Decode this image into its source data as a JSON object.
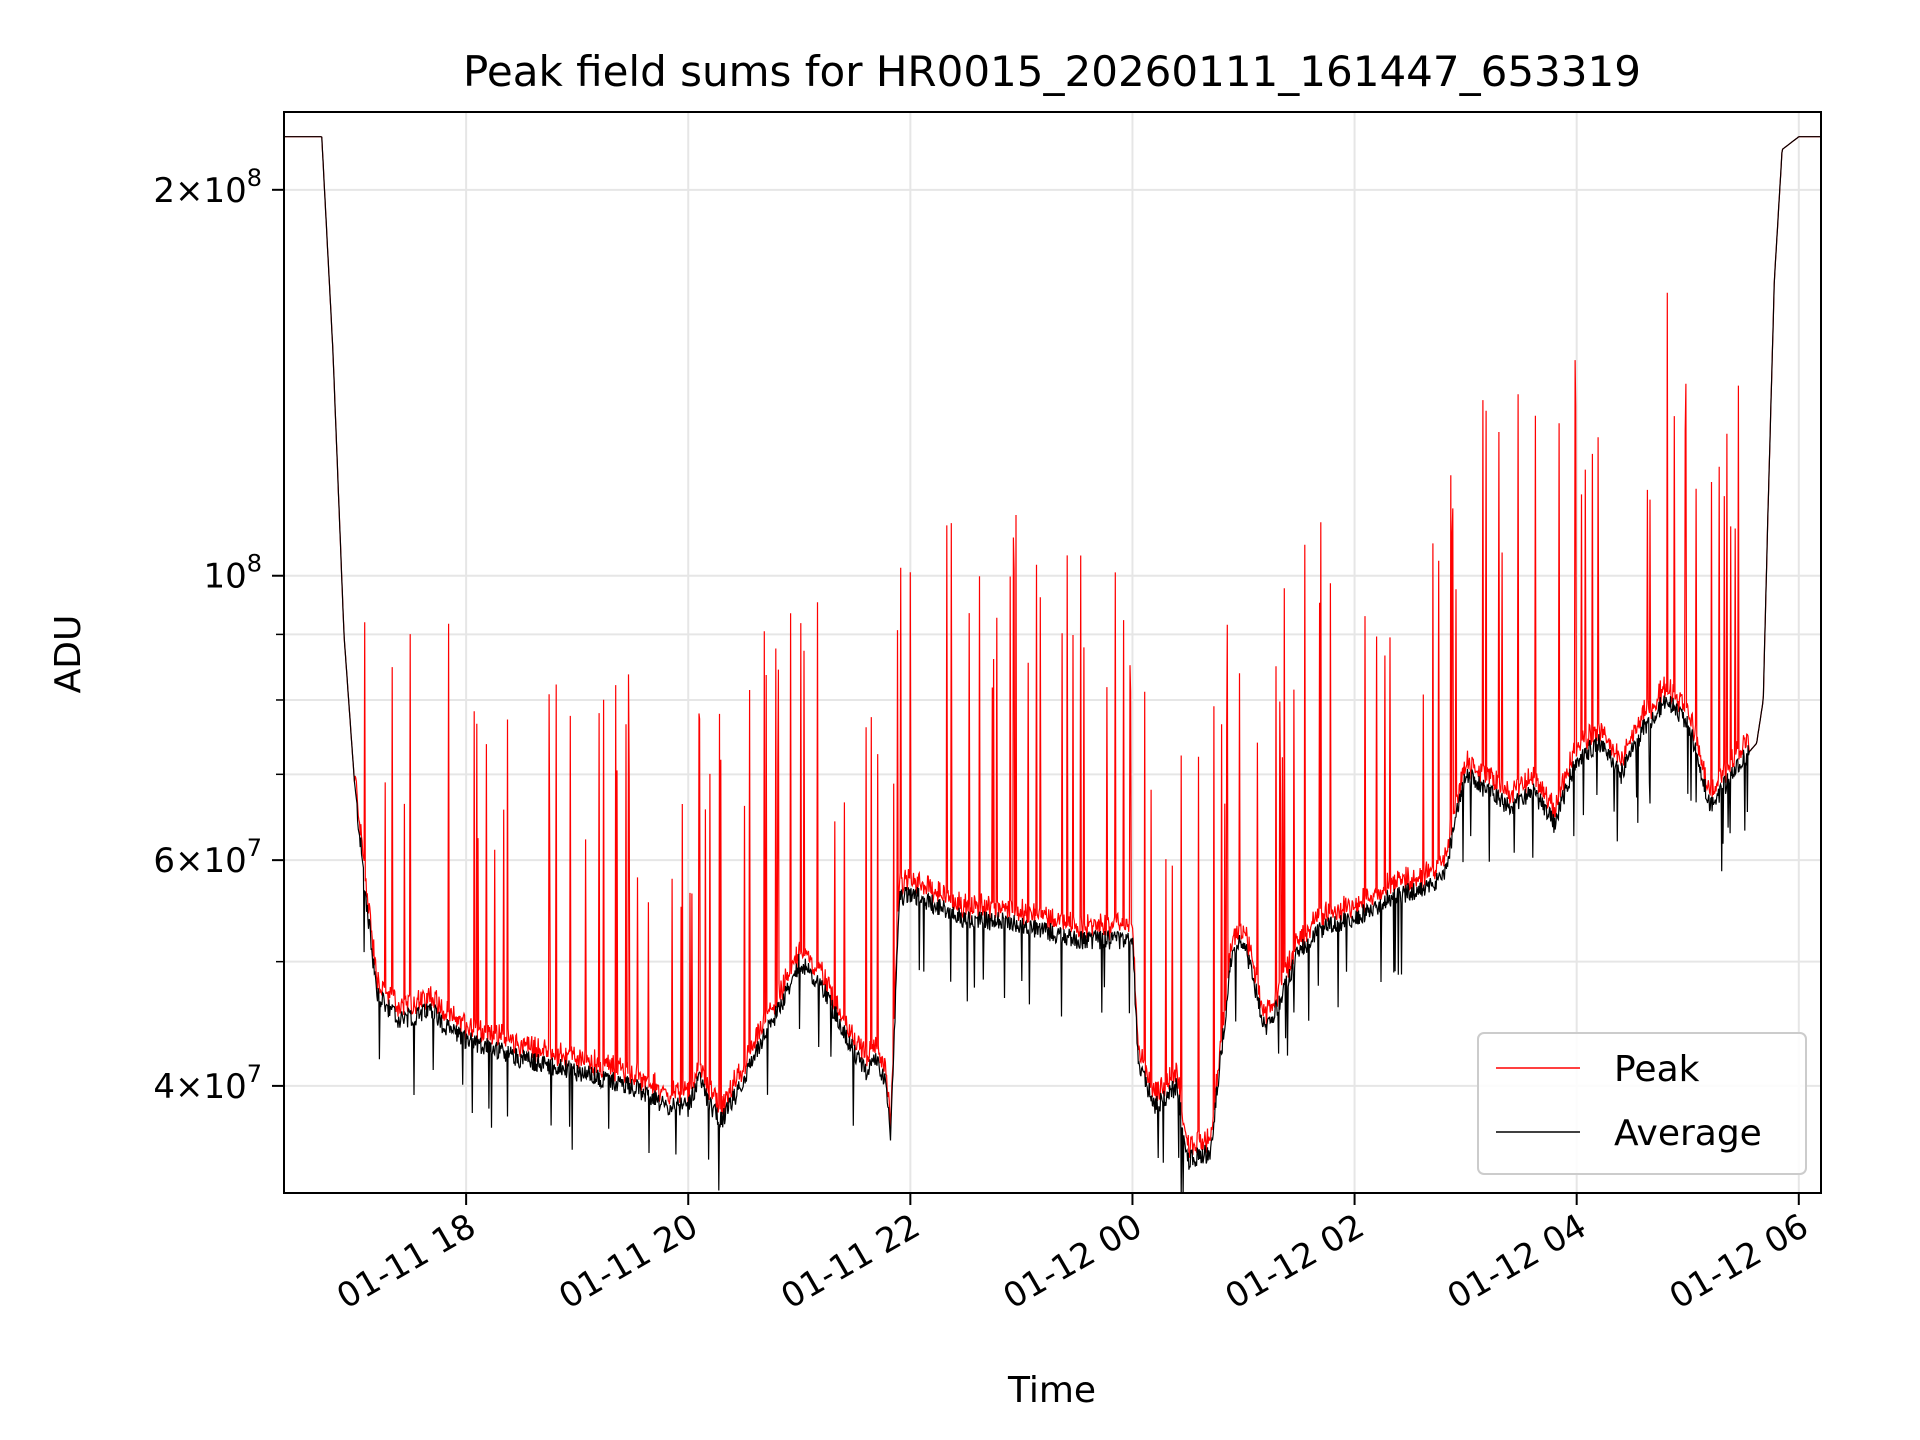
{
  "chart_data": {
    "type": "line",
    "title": "Peak field sums for HR0015_20260111_161447_653319",
    "xlabel": "Time",
    "ylabel": "ADU",
    "yscale": "log",
    "ylim": [
      33000000,
      230000000
    ],
    "xlim_hours": [
      16.36,
      30.2
    ],
    "grid": true,
    "legend_position": "lower-right",
    "x_ticks": [
      {
        "hour": 18,
        "label": "01-11 18"
      },
      {
        "hour": 20,
        "label": "01-11 20"
      },
      {
        "hour": 22,
        "label": "01-11 22"
      },
      {
        "hour": 24,
        "label": "01-12 00"
      },
      {
        "hour": 26,
        "label": "01-12 02"
      },
      {
        "hour": 28,
        "label": "01-12 04"
      },
      {
        "hour": 30,
        "label": "01-12 06"
      }
    ],
    "y_ticks": [
      {
        "value": 40000000,
        "mantissa": "4",
        "exponent": "7"
      },
      {
        "value": 60000000,
        "mantissa": "6",
        "exponent": "7"
      },
      {
        "value": 100000000,
        "mantissa": "",
        "exponent": "8"
      },
      {
        "value": 200000000,
        "mantissa": "2",
        "exponent": "8"
      }
    ],
    "y_minor_grid": [
      50000000,
      70000000,
      80000000,
      90000000,
      300000000
    ],
    "series": [
      {
        "name": "Peak",
        "color": "#ff0000",
        "baseline_hours": [
          16.36,
          16.7,
          16.8,
          16.9,
          17.0,
          17.1,
          17.2,
          17.4,
          17.6,
          17.7,
          17.8,
          18.0,
          18.5,
          19.0,
          19.5,
          19.8,
          20.0,
          20.1,
          20.2,
          20.3,
          20.5,
          20.7,
          20.9,
          21.0,
          21.2,
          21.4,
          21.6,
          21.7,
          21.78,
          21.82,
          21.9,
          22.0,
          22.2,
          22.5,
          23.0,
          23.5,
          24.0,
          24.05,
          24.2,
          24.4,
          24.5,
          24.7,
          24.9,
          25.0,
          25.2,
          25.3,
          25.5,
          25.7,
          26.0,
          26.3,
          26.6,
          26.8,
          26.9,
          27.0,
          27.2,
          27.4,
          27.6,
          27.8,
          28.0,
          28.2,
          28.4,
          28.6,
          28.8,
          29.0,
          29.2,
          29.5,
          29.62,
          29.68,
          29.72,
          29.78,
          29.85,
          30.0,
          30.2
        ],
        "baseline_values": [
          220000000,
          220000000,
          150000000,
          90000000,
          68000000,
          56000000,
          47000000,
          45000000,
          45500000,
          46000000,
          44500000,
          43500000,
          42000000,
          41000000,
          40000000,
          38500000,
          38500000,
          40500000,
          38500000,
          37500000,
          40500000,
          44000000,
          47500000,
          50000000,
          48000000,
          44000000,
          41000000,
          42000000,
          40000000,
          36500000,
          56000000,
          56500000,
          55500000,
          54000000,
          53500000,
          52000000,
          52000000,
          42000000,
          38500000,
          40000000,
          35000000,
          35500000,
          51000000,
          52000000,
          44000000,
          46000000,
          51000000,
          53000000,
          54000000,
          56000000,
          57000000,
          58000000,
          64000000,
          70000000,
          68000000,
          66000000,
          68000000,
          64000000,
          72000000,
          74000000,
          70000000,
          76000000,
          80000000,
          77000000,
          66000000,
          72000000,
          74000000,
          80000000,
          110000000,
          170000000,
          215000000,
          220000000,
          220000000
        ]
      },
      {
        "name": "Average",
        "color": "#000000"
      }
    ],
    "legend": [
      {
        "label": "Peak",
        "color": "#ff0000"
      },
      {
        "label": "Average",
        "color": "#000000"
      }
    ]
  }
}
